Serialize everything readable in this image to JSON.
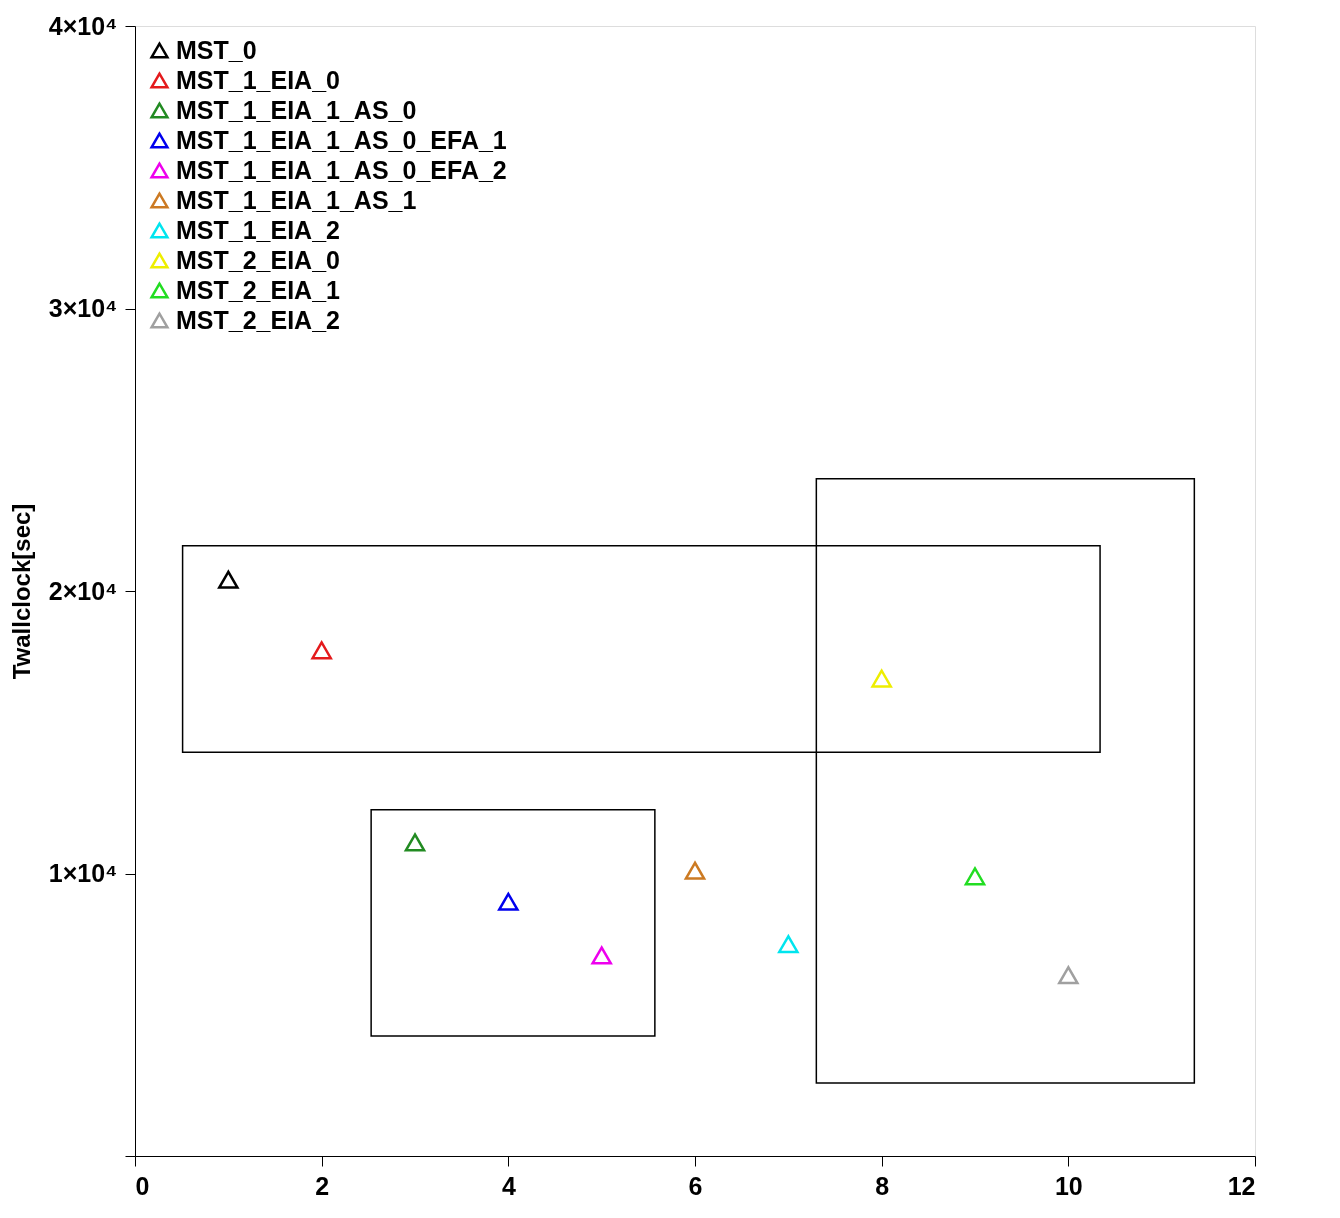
{
  "chart_data": {
    "type": "scatter",
    "ylabel": "Twallclock[sec]",
    "xlim": [
      0,
      12
    ],
    "xticks": [
      0,
      2,
      4,
      6,
      8,
      10,
      12
    ],
    "ylim": [
      0,
      40000
    ],
    "yticks": [
      {
        "value": 0,
        "label": null
      },
      {
        "value": 10000,
        "label": "1×10⁴"
      },
      {
        "value": 20000,
        "label": "2×10⁴"
      },
      {
        "value": 30000,
        "label": "3×10⁴"
      },
      {
        "value": 40000,
        "label": "4×10⁴"
      }
    ],
    "marker": "triangle",
    "grid": false,
    "legend": "top left",
    "series": [
      {
        "name": "MST_0",
        "color": "#000000",
        "x": [
          1
        ],
        "values": [
          20400
        ]
      },
      {
        "name": "MST_1_EIA_0",
        "color": "#e41a1c",
        "x": [
          2
        ],
        "values": [
          17900
        ]
      },
      {
        "name": "MST_1_EIA_1_AS_0",
        "color": "#228b22",
        "x": [
          3
        ],
        "values": [
          11100
        ]
      },
      {
        "name": "MST_1_EIA_1_AS_0_EFA_1",
        "color": "#0000ee",
        "x": [
          4
        ],
        "values": [
          9000
        ]
      },
      {
        "name": "MST_1_EIA_1_AS_0_EFA_2",
        "color": "#ee00ee",
        "x": [
          5
        ],
        "values": [
          7100
        ]
      },
      {
        "name": "MST_1_EIA_1_AS_1",
        "color": "#cc7a22",
        "x": [
          6
        ],
        "values": [
          10100
        ]
      },
      {
        "name": "MST_1_EIA_2",
        "color": "#00e5ee",
        "x": [
          7
        ],
        "values": [
          7500
        ]
      },
      {
        "name": "MST_2_EIA_0",
        "color": "#eeee00",
        "x": [
          8
        ],
        "values": [
          16900
        ]
      },
      {
        "name": "MST_2_EIA_1",
        "color": "#22dd22",
        "x": [
          9
        ],
        "values": [
          9900
        ]
      },
      {
        "name": "MST_2_EIA_2",
        "color": "#a0a0a0",
        "x": [
          10
        ],
        "values": [
          6400
        ]
      }
    ]
  }
}
